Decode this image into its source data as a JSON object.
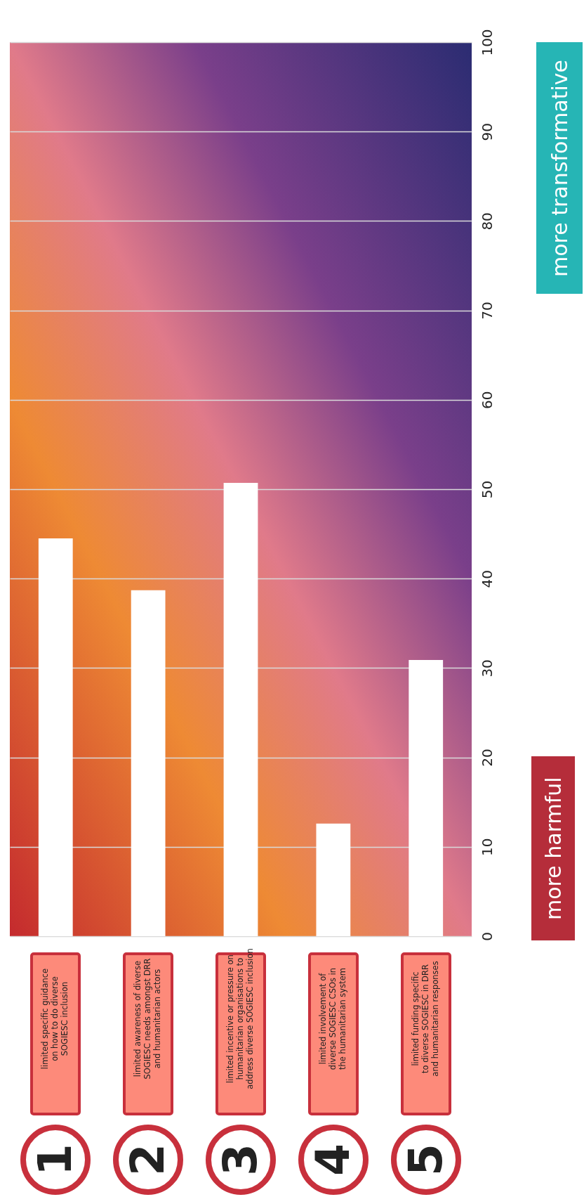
{
  "chart_data": {
    "type": "bar",
    "categories": [
      "limited specific guidance on how to do diverse SOGIESC inclusion",
      "limited awareness of diverse SOGIESC needs amongst DRR and humanitarian actors",
      "limited incentive or pressure on humanitarian organisations to address diverse SOGIESC inclusion",
      "limited involvement of diverse SOGIESC CSOs in the humanitarian system",
      "limited funding specific to diverse SOGIESC in DRR and humanitarian responses"
    ],
    "values": [
      44.5,
      38.7,
      50.7,
      12.6,
      30.9
    ],
    "color": "#ffffff",
    "ylim": [
      0,
      100
    ],
    "yticks": [
      0,
      10,
      20,
      30,
      40,
      50,
      60,
      70,
      80,
      90,
      100
    ],
    "grid": "y",
    "annotations": [
      "1",
      "2",
      "3",
      "4",
      "5",
      "more harmful",
      "more transformative"
    ]
  }
}
